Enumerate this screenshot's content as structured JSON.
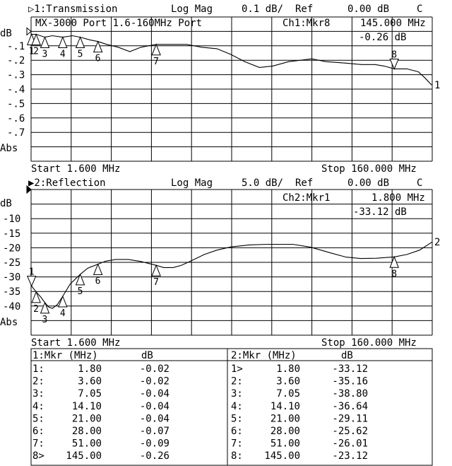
{
  "colors": {
    "background": "#ffffff",
    "ink": "#000000"
  },
  "chart_data": [
    {
      "type": "line",
      "channel_title": "▷1:Transmission",
      "format": "Log Mag",
      "scale": "0.1 dB/",
      "ref_label": "Ref",
      "ref_value": "0.00 dB",
      "flag": "C",
      "annotation": "MX-3000 Port 1.6-160MHz Port",
      "marker_readout": {
        "label": "Ch1:Mkr8",
        "freq": "145.000 MHz",
        "value": "-0.26 dB"
      },
      "ylabel": "dB",
      "ylabel_bottom": "Abs",
      "ytick_labels": [
        "-.1",
        "-.2",
        "-.3",
        "-.4",
        "-.5",
        "-.6",
        "-.7"
      ],
      "yticks": [
        -0.1,
        -0.2,
        -0.3,
        -0.4,
        -0.5,
        -0.6,
        -0.7
      ],
      "ylim": [
        -0.9,
        0.1
      ],
      "xlim": [
        1.6,
        160
      ],
      "x_scale": "linear",
      "grid": true,
      "start_label": "Start 1.600 MHz",
      "stop_label": "Stop 160.000 MHz",
      "trace_end_label": "1",
      "x": [
        1.6,
        3.6,
        7.05,
        10,
        14.1,
        18,
        21,
        25,
        28,
        31.5,
        36,
        40.6,
        45,
        51,
        57.7,
        63,
        69,
        75,
        80.5,
        86,
        91.8,
        97,
        103.3,
        108,
        112.4,
        118,
        126,
        132,
        137.4,
        141,
        145,
        150,
        154.5,
        157,
        159.7,
        160
      ],
      "y": [
        -0.02,
        -0.02,
        -0.04,
        -0.03,
        -0.04,
        -0.03,
        -0.04,
        -0.06,
        -0.07,
        -0.09,
        -0.11,
        -0.14,
        -0.11,
        -0.09,
        -0.09,
        -0.09,
        -0.11,
        -0.12,
        -0.16,
        -0.21,
        -0.25,
        -0.24,
        -0.21,
        -0.2,
        -0.19,
        -0.21,
        -0.22,
        -0.23,
        -0.23,
        -0.24,
        -0.26,
        -0.26,
        -0.28,
        -0.32,
        -0.37,
        -0.37
      ],
      "markers": [
        {
          "n": "1",
          "freq": 1.8,
          "db": -0.02,
          "active": false
        },
        {
          "n": "2",
          "freq": 3.6,
          "db": -0.02,
          "active": false
        },
        {
          "n": "3",
          "freq": 7.05,
          "db": -0.04,
          "active": false
        },
        {
          "n": "4",
          "freq": 14.1,
          "db": -0.04,
          "active": false
        },
        {
          "n": "5",
          "freq": 21.0,
          "db": -0.04,
          "active": false
        },
        {
          "n": "6",
          "freq": 28.0,
          "db": -0.07,
          "active": false
        },
        {
          "n": "7",
          "freq": 51.0,
          "db": -0.09,
          "active": false
        },
        {
          "n": "8",
          "freq": 145.0,
          "db": -0.26,
          "active": true
        }
      ]
    },
    {
      "type": "line",
      "channel_title": "▶2:Reflection",
      "format": "Log Mag",
      "scale": "5.0 dB/",
      "ref_label": "Ref",
      "ref_value": "0.00 dB",
      "flag": "C",
      "marker_readout": {
        "label": "Ch2:Mkr1",
        "freq": "1.800 MHz",
        "value": "-33.12 dB"
      },
      "ylabel": "dB",
      "ylabel_bottom": "Abs",
      "ytick_labels": [
        "-10",
        "-15",
        "-20",
        "-25",
        "-30",
        "-35",
        "-40"
      ],
      "yticks": [
        -10,
        -15,
        -20,
        -25,
        -30,
        -35,
        -40
      ],
      "ylim": [
        -50,
        0
      ],
      "xlim": [
        1.6,
        160
      ],
      "x_scale": "linear",
      "grid": true,
      "start_label": "Start 1.600 MHz",
      "stop_label": "Stop 160.000 MHz",
      "trace_end_label": "2",
      "x": [
        1.6,
        1.8,
        3.6,
        5.5,
        7.05,
        8.5,
        10,
        12,
        14.1,
        17,
        21,
        24,
        28,
        31,
        35,
        40,
        45,
        51,
        54,
        57.7,
        61,
        64.5,
        70,
        75,
        80.5,
        88,
        95,
        105,
        112,
        120,
        126,
        131.7,
        138,
        145,
        150,
        155,
        160
      ],
      "y": [
        -32.5,
        -33.12,
        -35.16,
        -37,
        -38.8,
        -40.3,
        -40.8,
        -39.5,
        -36.64,
        -32.5,
        -29.11,
        -27,
        -25.62,
        -24.6,
        -24.0,
        -24.0,
        -24.7,
        -26.01,
        -26.8,
        -26.8,
        -26,
        -24.6,
        -22.3,
        -20.8,
        -19.7,
        -19.0,
        -18.8,
        -18.8,
        -19.8,
        -21.8,
        -23.2,
        -23.7,
        -23.6,
        -23.12,
        -22.3,
        -20.8,
        -18.0
      ],
      "markers": [
        {
          "n": "1",
          "freq": 1.8,
          "db": -33.12,
          "active": true
        },
        {
          "n": "2",
          "freq": 3.6,
          "db": -35.16,
          "active": false
        },
        {
          "n": "3",
          "freq": 7.05,
          "db": -38.8,
          "active": false
        },
        {
          "n": "4",
          "freq": 14.1,
          "db": -36.64,
          "active": false
        },
        {
          "n": "5",
          "freq": 21.0,
          "db": -29.11,
          "active": false
        },
        {
          "n": "6",
          "freq": 28.0,
          "db": -25.62,
          "active": false
        },
        {
          "n": "7",
          "freq": 51.0,
          "db": -26.01,
          "active": false
        },
        {
          "n": "8",
          "freq": 145.0,
          "db": -23.12,
          "active": false
        }
      ]
    }
  ],
  "marker_tables": [
    {
      "header_mkr": "1:Mkr (MHz)",
      "header_db": "dB",
      "rows": [
        {
          "id": "1:",
          "freq": "1.80",
          "db": "-0.02"
        },
        {
          "id": "2:",
          "freq": "3.60",
          "db": "-0.02"
        },
        {
          "id": "3:",
          "freq": "7.05",
          "db": "-0.04"
        },
        {
          "id": "4:",
          "freq": "14.10",
          "db": "-0.04"
        },
        {
          "id": "5:",
          "freq": "21.00",
          "db": "-0.04"
        },
        {
          "id": "6:",
          "freq": "28.00",
          "db": "-0.07"
        },
        {
          "id": "7:",
          "freq": "51.00",
          "db": "-0.09"
        },
        {
          "id": "8>",
          "freq": "145.00",
          "db": "-0.26"
        }
      ]
    },
    {
      "header_mkr": "2:Mkr (MHz)",
      "header_db": "dB",
      "rows": [
        {
          "id": "1>",
          "freq": "1.80",
          "db": "-33.12"
        },
        {
          "id": "2:",
          "freq": "3.60",
          "db": "-35.16"
        },
        {
          "id": "3:",
          "freq": "7.05",
          "db": "-38.80"
        },
        {
          "id": "4:",
          "freq": "14.10",
          "db": "-36.64"
        },
        {
          "id": "5:",
          "freq": "21.00",
          "db": "-29.11"
        },
        {
          "id": "6:",
          "freq": "28.00",
          "db": "-25.62"
        },
        {
          "id": "7:",
          "freq": "51.00",
          "db": "-26.01"
        },
        {
          "id": "8:",
          "freq": "145.00",
          "db": "-23.12"
        }
      ]
    }
  ]
}
